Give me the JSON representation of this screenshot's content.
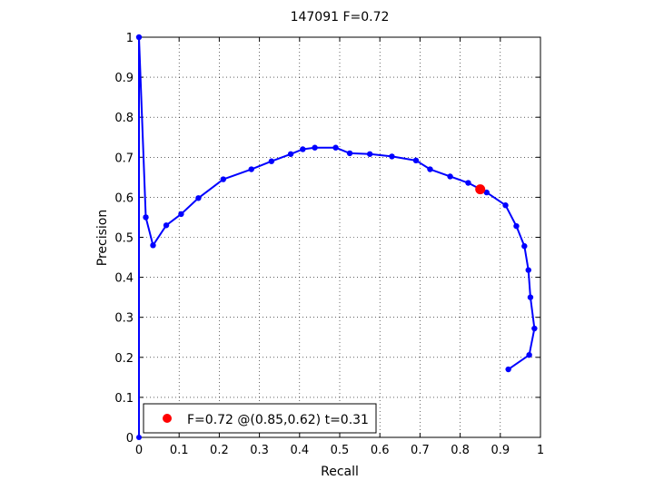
{
  "chart_data": {
    "type": "line",
    "title": "147091 F=0.72",
    "xlabel": "Recall",
    "ylabel": "Precision",
    "xlim": [
      0,
      1
    ],
    "ylim": [
      0,
      1
    ],
    "grid": true,
    "x_ticks": [
      "0",
      "0.1",
      "0.2",
      "0.3",
      "0.4",
      "0.5",
      "0.6",
      "0.7",
      "0.8",
      "0.9",
      "1"
    ],
    "y_ticks": [
      "0",
      "0.1",
      "0.2",
      "0.3",
      "0.4",
      "0.5",
      "0.6",
      "0.7",
      "0.8",
      "0.9",
      "1"
    ],
    "series": [
      {
        "color": "#0000ff",
        "points": [
          [
            0.0,
            1.0
          ],
          [
            0.017,
            0.55
          ],
          [
            0.035,
            0.48
          ],
          [
            0.068,
            0.53
          ],
          [
            0.105,
            0.558
          ],
          [
            0.148,
            0.598
          ],
          [
            0.21,
            0.645
          ],
          [
            0.28,
            0.67
          ],
          [
            0.33,
            0.69
          ],
          [
            0.378,
            0.708
          ],
          [
            0.408,
            0.72
          ],
          [
            0.438,
            0.724
          ],
          [
            0.49,
            0.724
          ],
          [
            0.525,
            0.71
          ],
          [
            0.575,
            0.708
          ],
          [
            0.63,
            0.702
          ],
          [
            0.69,
            0.692
          ],
          [
            0.725,
            0.67
          ],
          [
            0.775,
            0.652
          ],
          [
            0.82,
            0.636
          ],
          [
            0.866,
            0.612
          ],
          [
            0.913,
            0.58
          ],
          [
            0.94,
            0.528
          ],
          [
            0.96,
            0.478
          ],
          [
            0.97,
            0.418
          ],
          [
            0.975,
            0.35
          ],
          [
            0.985,
            0.272
          ],
          [
            0.972,
            0.206
          ],
          [
            0.92,
            0.17
          ]
        ]
      }
    ],
    "tail_to_origin": [
      [
        0.0,
        1.0
      ],
      [
        0.0,
        0.0
      ]
    ],
    "marker": {
      "x": 0.85,
      "y": 0.62,
      "color": "#ff0000"
    },
    "legend": {
      "label": "F=0.72 @(0.85,0.62) t=0.31",
      "placement": "bottom-left"
    }
  }
}
